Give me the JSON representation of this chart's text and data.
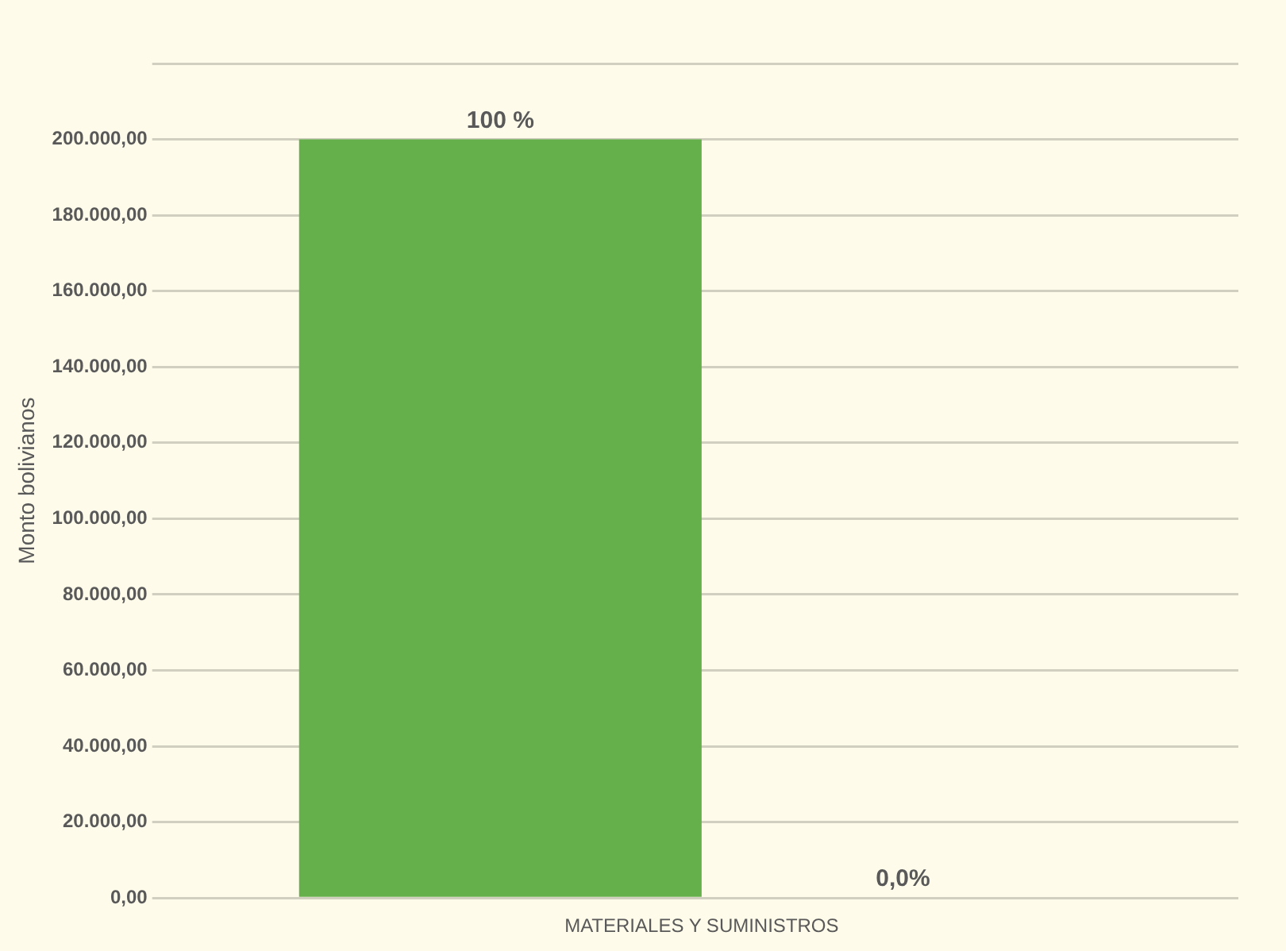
{
  "chart_data": {
    "type": "bar",
    "ylabel": "Monto bolivianos",
    "categories": [
      "MATERIALES Y SUMINISTROS"
    ],
    "series": [
      {
        "color": "#66b04c",
        "values": [
          200000
        ]
      },
      {
        "color": "#3a7896",
        "values": [
          0
        ]
      }
    ],
    "annotations": [
      "100 %",
      "0,0%"
    ],
    "ylim": [
      0,
      220000
    ],
    "yticks": [
      {
        "value": 0,
        "label": "0,00"
      },
      {
        "value": 20000,
        "label": "20.000,00"
      },
      {
        "value": 40000,
        "label": "40.000,00"
      },
      {
        "value": 60000,
        "label": "60.000,00"
      },
      {
        "value": 80000,
        "label": "80.000,00"
      },
      {
        "value": 100000,
        "label": "100.000,00"
      },
      {
        "value": 120000,
        "label": "120.000,00"
      },
      {
        "value": 140000,
        "label": "140.000,00"
      },
      {
        "value": 160000,
        "label": "160.000,00"
      },
      {
        "value": 180000,
        "label": "180.000,00"
      },
      {
        "value": 200000,
        "label": "200.000,00"
      },
      {
        "value": 220000,
        "label": null
      }
    ],
    "grid": "y",
    "legend": false
  }
}
